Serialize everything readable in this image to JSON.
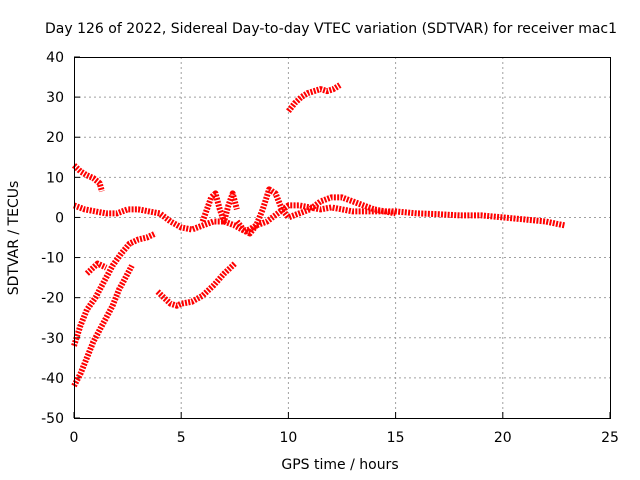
{
  "chart_data": {
    "type": "scatter",
    "title": "Day 126 of 2022, Sidereal Day-to-day VTEC variation (SDTVAR) for receiver mac1",
    "xlabel": "GPS time / hours",
    "ylabel": "SDTVAR / TECUs",
    "xlim": [
      0,
      25
    ],
    "ylim": [
      -50,
      40
    ],
    "xticks": [
      0,
      5,
      10,
      15,
      20,
      25
    ],
    "yticks": [
      -50,
      -40,
      -30,
      -20,
      -10,
      0,
      10,
      20,
      30,
      40
    ],
    "xtick_labels": [
      "0",
      "5",
      "10",
      "15",
      "20",
      "25"
    ],
    "ytick_labels": [
      "-50",
      "-40",
      "-30",
      "-20",
      "-10",
      "0",
      "10",
      "20",
      "30",
      "40"
    ],
    "grid": true,
    "marker_color": "#ff0000",
    "series": [
      {
        "name": "arc-1",
        "x": [
          0.0,
          0.3,
          0.6,
          0.9,
          1.2,
          1.3
        ],
        "y": [
          13,
          11.5,
          10.5,
          9.8,
          8.5,
          6.5
        ]
      },
      {
        "name": "arc-2",
        "x": [
          0.0,
          0.5,
          1.0,
          1.5,
          2.0,
          2.5,
          3.0,
          3.5,
          4.0,
          4.5,
          5.0,
          5.5,
          6.0,
          6.5,
          7.0,
          7.5,
          8.0,
          8.5,
          9.0,
          9.5,
          10.0,
          10.5,
          11.0,
          11.5,
          12.0,
          13.0,
          14.0,
          15.0,
          16.0,
          17.0,
          18.0,
          19.0,
          20.0,
          21.0,
          22.0,
          22.9
        ],
        "y": [
          3,
          2,
          1.5,
          1,
          1,
          2,
          2,
          1.5,
          1,
          -1,
          -2.5,
          -3,
          -2,
          -1,
          -1,
          -2,
          -3.5,
          -2,
          -1,
          1,
          3,
          3,
          2.5,
          2,
          2.5,
          1.5,
          1.5,
          1.5,
          1,
          0.8,
          0.5,
          0.5,
          0,
          -0.5,
          -1,
          -2
        ]
      },
      {
        "name": "arc-3",
        "x": [
          0.0,
          0.3,
          0.6,
          1.0,
          1.4,
          1.8,
          2.2,
          2.6,
          3.0,
          3.4,
          3.8
        ],
        "y": [
          -32,
          -27,
          -23,
          -20,
          -16,
          -12,
          -9,
          -6.5,
          -5.5,
          -5,
          -4
        ]
      },
      {
        "name": "arc-4",
        "x": [
          0.6,
          0.9,
          1.1,
          1.3,
          1.5
        ],
        "y": [
          -14,
          -12.5,
          -11.5,
          -12,
          -12.5
        ]
      },
      {
        "name": "arc-5",
        "x": [
          0.0,
          0.3,
          0.6,
          0.9,
          1.2,
          1.5,
          1.8,
          2.1,
          2.4,
          2.7
        ],
        "y": [
          -42,
          -39,
          -35,
          -31,
          -28,
          -25,
          -22,
          -18,
          -15,
          -12
        ]
      },
      {
        "name": "arc-6",
        "x": [
          3.9,
          4.2,
          4.5,
          4.8,
          5.0,
          5.5,
          6.0,
          6.5,
          7.0,
          7.5
        ],
        "y": [
          -18.5,
          -20,
          -21.5,
          -22,
          -21.5,
          -21,
          -19.5,
          -17,
          -14,
          -11.5
        ]
      },
      {
        "name": "arc-7",
        "x": [
          6.0,
          6.2,
          6.4,
          6.6,
          6.8,
          7.0,
          7.2,
          7.4,
          7.6
        ],
        "y": [
          -1,
          2,
          5,
          6,
          2,
          -1,
          3,
          6,
          2
        ]
      },
      {
        "name": "arc-8",
        "x": [
          7.6,
          7.9,
          8.2,
          8.5,
          8.8,
          9.1,
          9.4,
          9.7,
          10.0,
          10.5,
          11.0,
          11.5,
          12.0,
          12.5,
          13.0,
          13.5,
          14.0,
          14.5,
          15.0
        ],
        "y": [
          -1,
          -3,
          -4,
          -2,
          2,
          7,
          6,
          2,
          0,
          1,
          2,
          4,
          5,
          5,
          4,
          3,
          2,
          1.5,
          1
        ]
      },
      {
        "name": "arc-9",
        "x": [
          10.0,
          10.3,
          10.6,
          10.9,
          11.2,
          11.5,
          11.8,
          12.1,
          12.4
        ],
        "y": [
          26.5,
          28.5,
          30,
          31,
          31.5,
          32,
          31.5,
          32,
          33
        ]
      }
    ]
  }
}
